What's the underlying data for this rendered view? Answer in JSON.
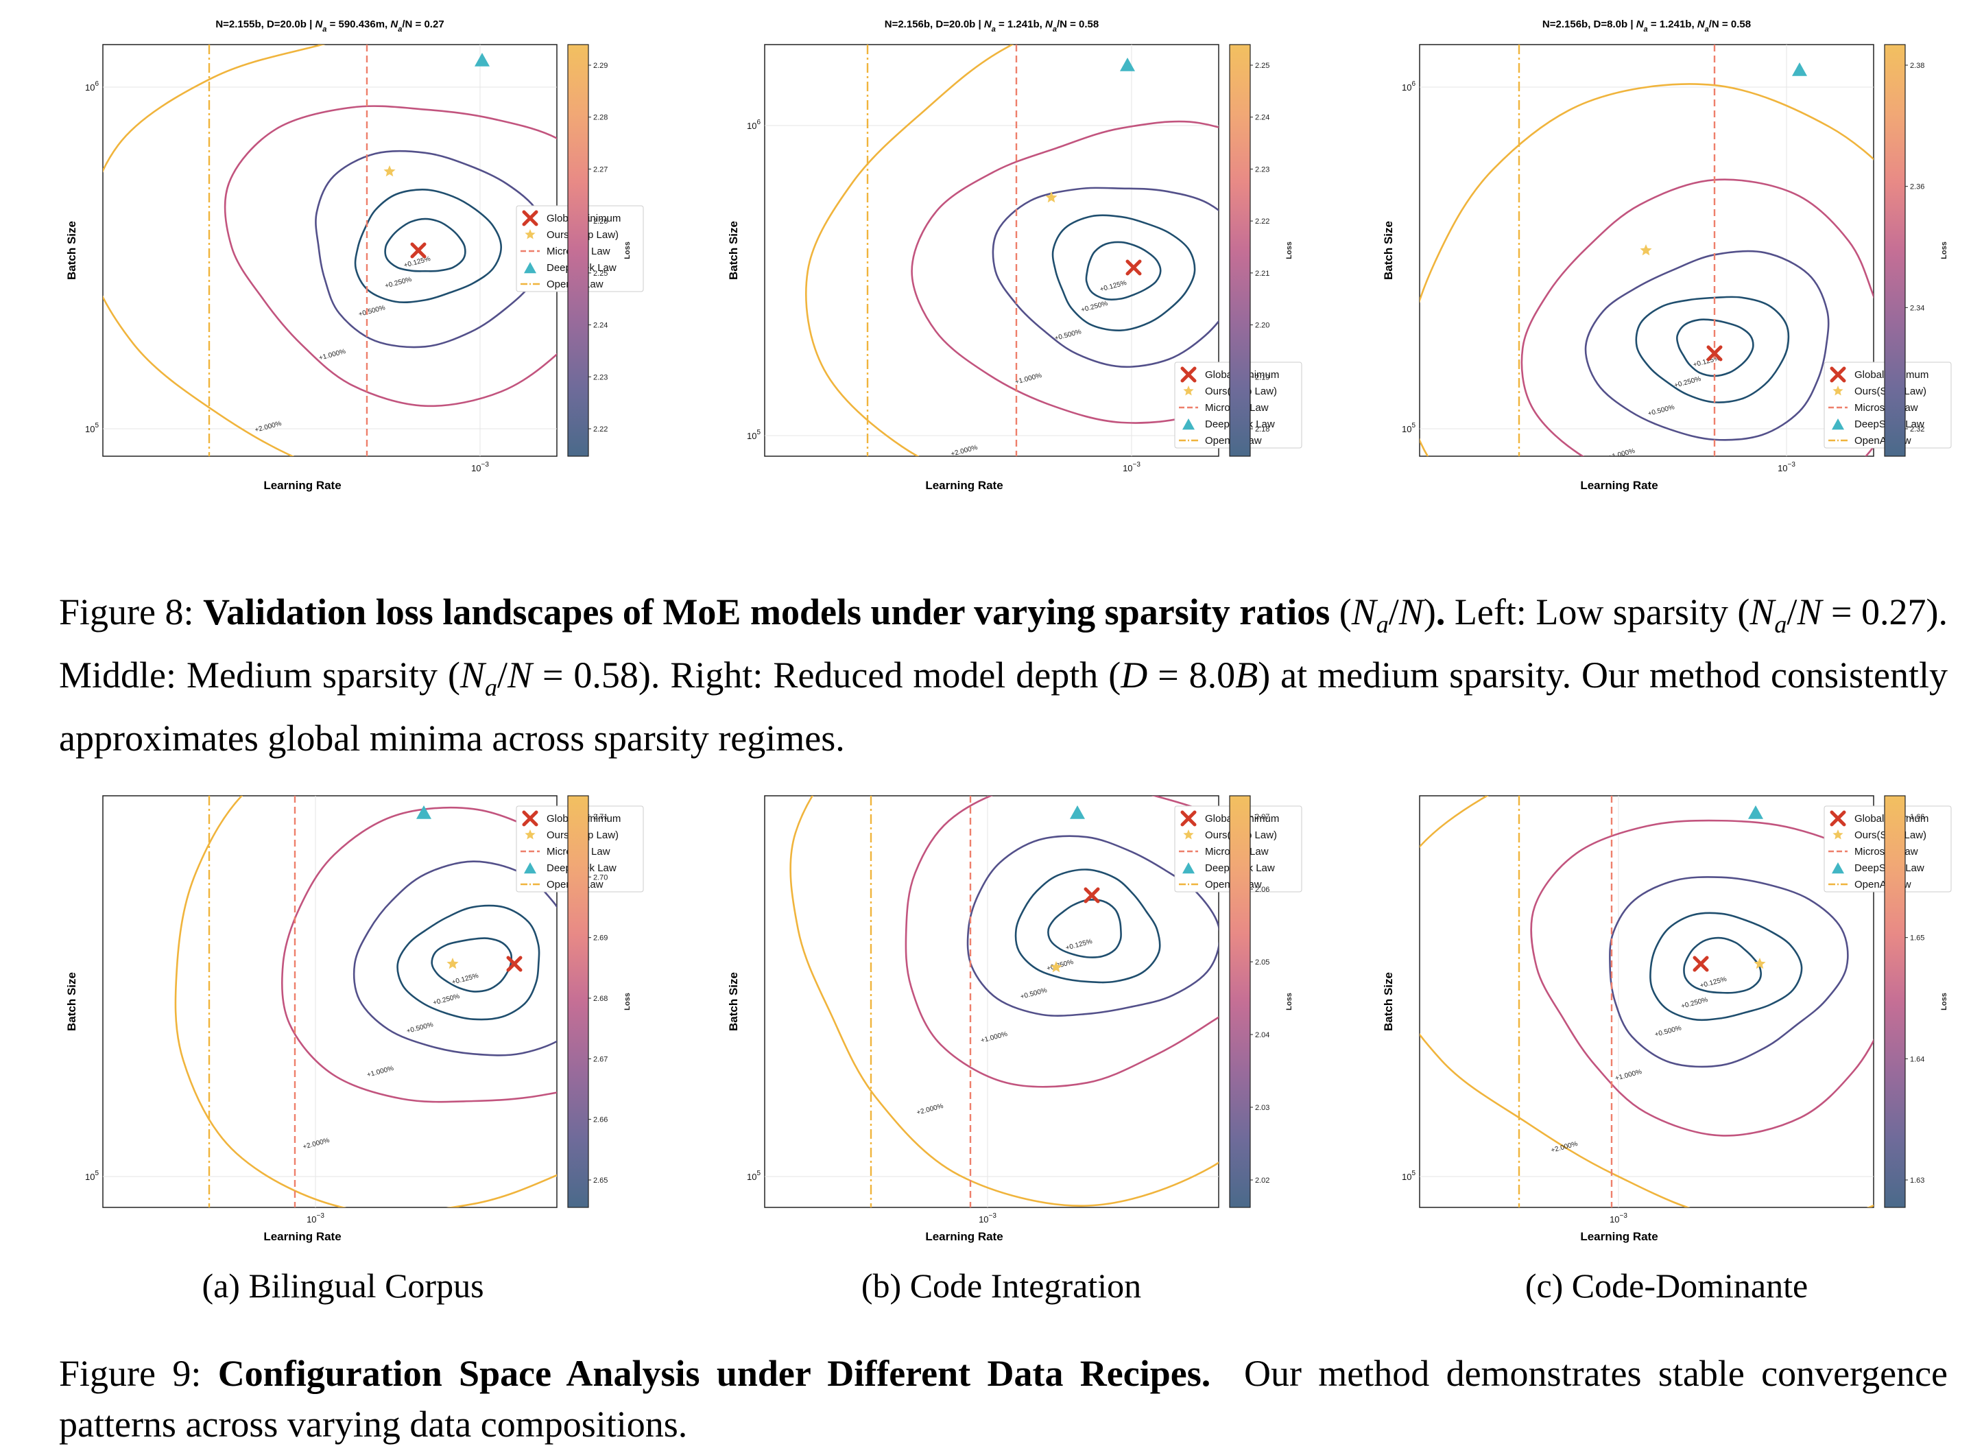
{
  "colors": {
    "global_min": "#d13a27",
    "ours": "#f2c75c",
    "microsoft": "#ee7f6b",
    "deepseek": "#41b6c4",
    "openai": "#f0b43c",
    "contour_inner": "#1f4e6e",
    "contour_mid": "#53508a",
    "contour_pink": "#c2547e",
    "contour_outer": "#f0b43c"
  },
  "legend": {
    "global_min": "Global Minimum",
    "ours": "Ours(Step Law)",
    "microsoft": "Microsoft Law",
    "deepseek": "DeepSeek Law",
    "openai": "OpenAI Law"
  },
  "axes": {
    "xlabel": "Learning Rate",
    "ylabel": "Batch Size",
    "cbar_label": "Loss",
    "x_tick": "10",
    "x_tick_exp": "−3",
    "y_tick_base": "10",
    "y_tick_exp5": "5",
    "y_tick_exp6": "6"
  },
  "chart_data": [
    {
      "type": "contour",
      "figure": "Figure 8",
      "title": "N=2.155b, D=20.0b | N_a = 590.436m, N_a/N = 0.27",
      "title_parts": {
        "pre": "N=2.155b, D=20.0b | ",
        "n1": "N",
        "s1": "a",
        "mid": " = 590.436m, ",
        "n2": "N",
        "s2": "a",
        "post": "/N = 0.27"
      },
      "x_scale": "log",
      "y_scale": "log",
      "y_ticks": [
        "10^5",
        "10^6"
      ],
      "x_ticks": [
        "10^-3"
      ],
      "colorbar": {
        "ticks": [
          "2.22",
          "2.23",
          "2.24",
          "2.25",
          "2.26",
          "2.27",
          "2.28",
          "2.29"
        ],
        "label": "Loss"
      },
      "contour_labels": [
        "+0.125%",
        "+0.250%",
        "+0.500%",
        "+1.000%",
        "+2.000%"
      ],
      "legend_position": "center-right",
      "markers": {
        "global_min": true,
        "ours": true,
        "deepseek": true,
        "microsoft_line": true,
        "openai_line": true
      }
    },
    {
      "type": "contour",
      "figure": "Figure 8",
      "title": "N=2.156b, D=20.0b | N_a = 1.241b, N_a/N = 0.58",
      "title_parts": {
        "pre": "N=2.156b, D=20.0b | ",
        "n1": "N",
        "s1": "a",
        "mid": " = 1.241b, ",
        "n2": "N",
        "s2": "a",
        "post": "/N = 0.58"
      },
      "x_scale": "log",
      "y_scale": "log",
      "y_ticks": [
        "10^5",
        "10^6"
      ],
      "x_ticks": [
        "10^-3"
      ],
      "colorbar": {
        "ticks": [
          "2.18",
          "2.19",
          "2.20",
          "2.21",
          "2.22",
          "2.23",
          "2.24",
          "2.25"
        ],
        "label": "Loss"
      },
      "contour_labels": [
        "+0.125%",
        "+0.250%",
        "+0.500%",
        "+1.000%",
        "+2.000%"
      ],
      "legend_position": "lower-right",
      "markers": {
        "global_min": true,
        "ours": true,
        "deepseek": true,
        "microsoft_line": true,
        "openai_line": true
      }
    },
    {
      "type": "contour",
      "figure": "Figure 8",
      "title": "N=2.156b, D=8.0b | N_a = 1.241b, N_a/N = 0.58",
      "title_parts": {
        "pre": "N=2.156b, D=8.0b | ",
        "n1": "N",
        "s1": "a",
        "mid": " = 1.241b, ",
        "n2": "N",
        "s2": "a",
        "post": "/N = 0.58"
      },
      "x_scale": "log",
      "y_scale": "log",
      "y_ticks": [
        "10^5",
        "10^6"
      ],
      "x_ticks": [
        "10^-3"
      ],
      "colorbar": {
        "ticks": [
          "2.32",
          "2.34",
          "2.36",
          "2.38"
        ],
        "label": "Loss"
      },
      "contour_labels": [
        "+0.125%",
        "+0.250%",
        "+0.500%",
        "+1.000%",
        "+2.000%"
      ],
      "legend_position": "lower-right",
      "markers": {
        "global_min": true,
        "ours": true,
        "deepseek": true,
        "microsoft_line": true,
        "openai_line": true
      }
    },
    {
      "type": "contour",
      "figure": "Figure 9",
      "title": "",
      "x_scale": "log",
      "y_scale": "log",
      "y_ticks": [
        "10^5"
      ],
      "x_ticks": [
        "10^-3"
      ],
      "colorbar": {
        "ticks": [
          "2.65",
          "2.66",
          "2.67",
          "2.68",
          "2.69",
          "2.70",
          "2.71"
        ],
        "label": "Loss"
      },
      "contour_labels": [
        "+0.125%",
        "+0.250%",
        "+0.500%",
        "+1.000%",
        "+2.000%"
      ],
      "legend_position": "top-right",
      "markers": {
        "global_min": true,
        "ours": true,
        "deepseek": true,
        "microsoft_line": true,
        "openai_line": true
      }
    },
    {
      "type": "contour",
      "figure": "Figure 9",
      "title": "",
      "x_scale": "log",
      "y_scale": "log",
      "y_ticks": [
        "10^5"
      ],
      "x_ticks": [
        "10^-3"
      ],
      "colorbar": {
        "ticks": [
          "2.02",
          "2.03",
          "2.04",
          "2.05",
          "2.06",
          "2.07"
        ],
        "label": "Loss"
      },
      "contour_labels": [
        "+0.125%",
        "+0.250%",
        "+0.500%",
        "+1.000%",
        "+2.000%"
      ],
      "legend_position": "top-right",
      "markers": {
        "global_min": true,
        "ours": true,
        "deepseek": true,
        "microsoft_line": true,
        "openai_line": true
      }
    },
    {
      "type": "contour",
      "figure": "Figure 9",
      "title": "",
      "x_scale": "log",
      "y_scale": "log",
      "y_ticks": [
        "10^5"
      ],
      "x_ticks": [
        "10^-3"
      ],
      "colorbar": {
        "ticks": [
          "1.63",
          "1.64",
          "1.65",
          "1.66"
        ],
        "label": "Loss"
      },
      "contour_labels": [
        "+0.125%",
        "+0.250%",
        "+0.500%",
        "+1.000%",
        "+2.000%"
      ],
      "legend_position": "top-right",
      "markers": {
        "global_min": true,
        "ours": true,
        "deepseek": true,
        "microsoft_line": true,
        "openai_line": true
      }
    }
  ],
  "captions": {
    "fig8": {
      "label": "Figure 8: ",
      "bold": "Validation loss landscapes of MoE models under varying sparsity ratios",
      "bold_math": "(N_a/N).",
      "rest": "Left: Low sparsity (N_a/N = 0.27). Middle: Medium sparsity (N_a/N = 0.58). Right: Reduced model depth (D = 8.0B) at medium sparsity. Our method consistently approximates global minima across sparsity regimes."
    },
    "fig9": {
      "label": "Figure 9: ",
      "bold": "Configuration Space Analysis under Different Data Recipes.",
      "rest": "Our method demonstrates stable convergence patterns across varying data compositions."
    },
    "subcaptions": [
      "(a) Bilingual Corpus",
      "(b) Code Integration",
      "(c) Code-Dominante"
    ]
  }
}
